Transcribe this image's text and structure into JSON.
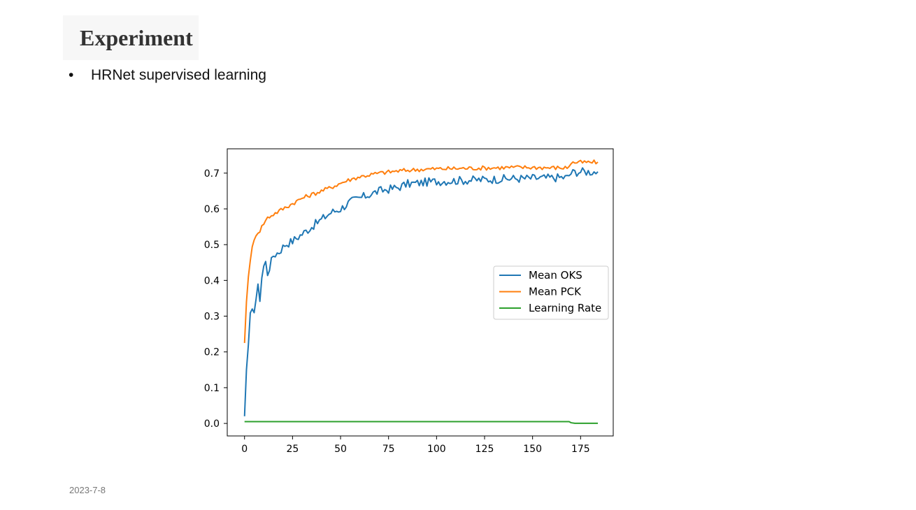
{
  "slide": {
    "title": "Experiment",
    "bullet": "HRNet supervised learning",
    "date": "2023-7-8"
  },
  "chart_data": {
    "type": "line",
    "title": "",
    "xlabel": "",
    "ylabel": "",
    "xlim": [
      -9,
      192
    ],
    "ylim": [
      -0.035,
      0.768
    ],
    "x_ticks": [
      0,
      25,
      50,
      75,
      100,
      125,
      150,
      175
    ],
    "y_ticks": [
      0.0,
      0.1,
      0.2,
      0.3,
      0.4,
      0.5,
      0.6,
      0.7
    ],
    "grid": false,
    "legend_position": "center-right",
    "series": [
      {
        "name": "Mean OKS",
        "color": "#1f77b4",
        "points": [
          [
            0,
            0.02
          ],
          [
            1,
            0.15
          ],
          [
            2,
            0.22
          ],
          [
            3,
            0.3
          ],
          [
            4,
            0.31
          ],
          [
            5,
            0.32
          ],
          [
            6,
            0.35
          ],
          [
            7,
            0.38
          ],
          [
            8,
            0.35
          ],
          [
            9,
            0.41
          ],
          [
            10,
            0.44
          ],
          [
            11,
            0.45
          ],
          [
            12,
            0.42
          ],
          [
            15,
            0.47
          ],
          [
            18,
            0.48
          ],
          [
            21,
            0.5
          ],
          [
            25,
            0.51
          ],
          [
            30,
            0.53
          ],
          [
            35,
            0.55
          ],
          [
            40,
            0.57
          ],
          [
            45,
            0.59
          ],
          [
            50,
            0.6
          ],
          [
            55,
            0.62
          ],
          [
            60,
            0.63
          ],
          [
            65,
            0.64
          ],
          [
            70,
            0.65
          ],
          [
            75,
            0.655
          ],
          [
            80,
            0.66
          ],
          [
            85,
            0.67
          ],
          [
            90,
            0.672
          ],
          [
            95,
            0.675
          ],
          [
            100,
            0.677
          ],
          [
            105,
            0.678
          ],
          [
            110,
            0.679
          ],
          [
            115,
            0.68
          ],
          [
            120,
            0.681
          ],
          [
            125,
            0.682
          ],
          [
            130,
            0.683
          ],
          [
            135,
            0.684
          ],
          [
            140,
            0.685
          ],
          [
            145,
            0.685
          ],
          [
            150,
            0.686
          ],
          [
            155,
            0.686
          ],
          [
            160,
            0.687
          ],
          [
            165,
            0.688
          ],
          [
            168,
            0.688
          ],
          [
            170,
            0.7
          ],
          [
            172,
            0.703
          ],
          [
            175,
            0.704
          ],
          [
            180,
            0.704
          ],
          [
            184,
            0.704
          ]
        ],
        "noise": 0.012
      },
      {
        "name": "Mean PCK",
        "color": "#ff7f0e",
        "points": [
          [
            0,
            0.225
          ],
          [
            1,
            0.34
          ],
          [
            2,
            0.41
          ],
          [
            3,
            0.46
          ],
          [
            4,
            0.49
          ],
          [
            5,
            0.51
          ],
          [
            6,
            0.53
          ],
          [
            8,
            0.54
          ],
          [
            10,
            0.56
          ],
          [
            12,
            0.575
          ],
          [
            15,
            0.585
          ],
          [
            20,
            0.6
          ],
          [
            25,
            0.615
          ],
          [
            30,
            0.63
          ],
          [
            35,
            0.64
          ],
          [
            40,
            0.65
          ],
          [
            45,
            0.66
          ],
          [
            50,
            0.672
          ],
          [
            55,
            0.682
          ],
          [
            60,
            0.69
          ],
          [
            65,
            0.695
          ],
          [
            70,
            0.7
          ],
          [
            75,
            0.703
          ],
          [
            80,
            0.706
          ],
          [
            85,
            0.708
          ],
          [
            90,
            0.71
          ],
          [
            100,
            0.712
          ],
          [
            110,
            0.713
          ],
          [
            120,
            0.714
          ],
          [
            130,
            0.715
          ],
          [
            140,
            0.716
          ],
          [
            150,
            0.716
          ],
          [
            160,
            0.715
          ],
          [
            165,
            0.715
          ],
          [
            168,
            0.715
          ],
          [
            170,
            0.728
          ],
          [
            172,
            0.73
          ],
          [
            175,
            0.73
          ],
          [
            180,
            0.73
          ],
          [
            184,
            0.731
          ]
        ],
        "noise": 0.006
      },
      {
        "name": "Learning Rate",
        "color": "#2ca02c",
        "points": [
          [
            0,
            0.005
          ],
          [
            169,
            0.005
          ],
          [
            170,
            0.002
          ],
          [
            172,
            0.0005
          ],
          [
            184,
            0.0005
          ]
        ],
        "noise": 0
      }
    ]
  }
}
